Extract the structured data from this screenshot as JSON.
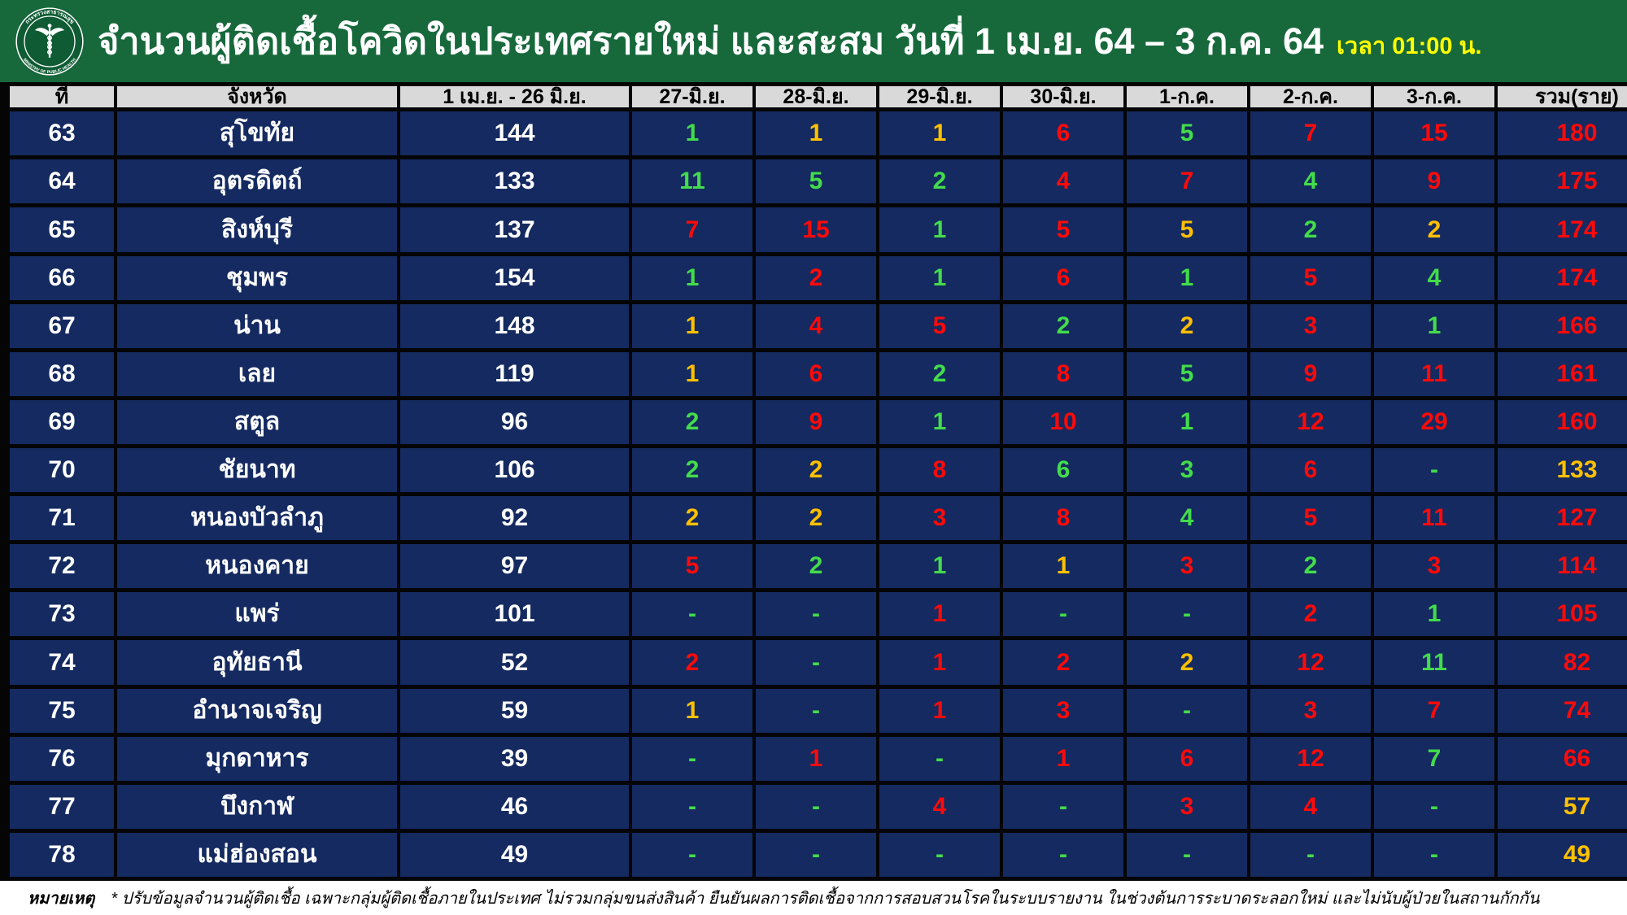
{
  "header": {
    "title": "จำนวนผู้ติดเชื้อโควิดในประเทศรายใหม่ และสะสม วันที่ 1 เม.ย. 64 – 3 ก.ค. 64",
    "time": "เวลา 01:00 น.",
    "logo": {
      "top_text": "กระทรวงสาธารณสุข",
      "bottom_text": "MINISTRY OF PUBLIC HEALTH"
    }
  },
  "colors": {
    "green": "#43dc4b",
    "yellow": "#ffc000",
    "red": "#ff0a0a",
    "white": "#ffffff",
    "cell_navy": "#142a60",
    "header_grey": "#d9d9d9",
    "bar_green": "#17693c",
    "time_yellow": "#ffff00"
  },
  "table": {
    "columns": [
      "ที่",
      "จังหวัด",
      "1 เม.ย. - 26 มิ.ย.",
      "27-มิ.ย.",
      "28-มิ.ย.",
      "29-มิ.ย.",
      "30-มิ.ย.",
      "1-ก.ค.",
      "2-ก.ค.",
      "3-ก.ค.",
      "รวม(ราย)"
    ],
    "rows": [
      {
        "no": "63",
        "province": "สุโขทัย",
        "period": "144",
        "days": [
          {
            "v": "1",
            "c": "green"
          },
          {
            "v": "1",
            "c": "yellow"
          },
          {
            "v": "1",
            "c": "yellow"
          },
          {
            "v": "6",
            "c": "red"
          },
          {
            "v": "5",
            "c": "green"
          },
          {
            "v": "7",
            "c": "red"
          },
          {
            "v": "15",
            "c": "red"
          }
        ],
        "total": {
          "v": "180",
          "c": "red"
        }
      },
      {
        "no": "64",
        "province": "อุตรดิตถ์",
        "period": "133",
        "days": [
          {
            "v": "11",
            "c": "green"
          },
          {
            "v": "5",
            "c": "green"
          },
          {
            "v": "2",
            "c": "green"
          },
          {
            "v": "4",
            "c": "red"
          },
          {
            "v": "7",
            "c": "red"
          },
          {
            "v": "4",
            "c": "green"
          },
          {
            "v": "9",
            "c": "red"
          }
        ],
        "total": {
          "v": "175",
          "c": "red"
        }
      },
      {
        "no": "65",
        "province": "สิงห์บุรี",
        "period": "137",
        "days": [
          {
            "v": "7",
            "c": "red"
          },
          {
            "v": "15",
            "c": "red"
          },
          {
            "v": "1",
            "c": "green"
          },
          {
            "v": "5",
            "c": "red"
          },
          {
            "v": "5",
            "c": "yellow"
          },
          {
            "v": "2",
            "c": "green"
          },
          {
            "v": "2",
            "c": "yellow"
          }
        ],
        "total": {
          "v": "174",
          "c": "red"
        }
      },
      {
        "no": "66",
        "province": "ชุมพร",
        "period": "154",
        "days": [
          {
            "v": "1",
            "c": "green"
          },
          {
            "v": "2",
            "c": "red"
          },
          {
            "v": "1",
            "c": "green"
          },
          {
            "v": "6",
            "c": "red"
          },
          {
            "v": "1",
            "c": "green"
          },
          {
            "v": "5",
            "c": "red"
          },
          {
            "v": "4",
            "c": "green"
          }
        ],
        "total": {
          "v": "174",
          "c": "red"
        }
      },
      {
        "no": "67",
        "province": "น่าน",
        "period": "148",
        "days": [
          {
            "v": "1",
            "c": "yellow"
          },
          {
            "v": "4",
            "c": "red"
          },
          {
            "v": "5",
            "c": "red"
          },
          {
            "v": "2",
            "c": "green"
          },
          {
            "v": "2",
            "c": "yellow"
          },
          {
            "v": "3",
            "c": "red"
          },
          {
            "v": "1",
            "c": "green"
          }
        ],
        "total": {
          "v": "166",
          "c": "red"
        }
      },
      {
        "no": "68",
        "province": "เลย",
        "period": "119",
        "days": [
          {
            "v": "1",
            "c": "yellow"
          },
          {
            "v": "6",
            "c": "red"
          },
          {
            "v": "2",
            "c": "green"
          },
          {
            "v": "8",
            "c": "red"
          },
          {
            "v": "5",
            "c": "green"
          },
          {
            "v": "9",
            "c": "red"
          },
          {
            "v": "11",
            "c": "red"
          }
        ],
        "total": {
          "v": "161",
          "c": "red"
        }
      },
      {
        "no": "69",
        "province": "สตูล",
        "period": "96",
        "days": [
          {
            "v": "2",
            "c": "green"
          },
          {
            "v": "9",
            "c": "red"
          },
          {
            "v": "1",
            "c": "green"
          },
          {
            "v": "10",
            "c": "red"
          },
          {
            "v": "1",
            "c": "green"
          },
          {
            "v": "12",
            "c": "red"
          },
          {
            "v": "29",
            "c": "red"
          }
        ],
        "total": {
          "v": "160",
          "c": "red"
        }
      },
      {
        "no": "70",
        "province": "ชัยนาท",
        "period": "106",
        "days": [
          {
            "v": "2",
            "c": "green"
          },
          {
            "v": "2",
            "c": "yellow"
          },
          {
            "v": "8",
            "c": "red"
          },
          {
            "v": "6",
            "c": "green"
          },
          {
            "v": "3",
            "c": "green"
          },
          {
            "v": "6",
            "c": "red"
          },
          {
            "v": "-",
            "c": "green"
          }
        ],
        "total": {
          "v": "133",
          "c": "yellow"
        }
      },
      {
        "no": "71",
        "province": "หนองบัวลำภู",
        "period": "92",
        "days": [
          {
            "v": "2",
            "c": "yellow"
          },
          {
            "v": "2",
            "c": "yellow"
          },
          {
            "v": "3",
            "c": "red"
          },
          {
            "v": "8",
            "c": "red"
          },
          {
            "v": "4",
            "c": "green"
          },
          {
            "v": "5",
            "c": "red"
          },
          {
            "v": "11",
            "c": "red"
          }
        ],
        "total": {
          "v": "127",
          "c": "red"
        }
      },
      {
        "no": "72",
        "province": "หนองคาย",
        "period": "97",
        "days": [
          {
            "v": "5",
            "c": "red"
          },
          {
            "v": "2",
            "c": "green"
          },
          {
            "v": "1",
            "c": "green"
          },
          {
            "v": "1",
            "c": "yellow"
          },
          {
            "v": "3",
            "c": "red"
          },
          {
            "v": "2",
            "c": "green"
          },
          {
            "v": "3",
            "c": "red"
          }
        ],
        "total": {
          "v": "114",
          "c": "red"
        }
      },
      {
        "no": "73",
        "province": "แพร่",
        "period": "101",
        "days": [
          {
            "v": "-",
            "c": "green"
          },
          {
            "v": "-",
            "c": "green"
          },
          {
            "v": "1",
            "c": "red"
          },
          {
            "v": "-",
            "c": "green"
          },
          {
            "v": "-",
            "c": "green"
          },
          {
            "v": "2",
            "c": "red"
          },
          {
            "v": "1",
            "c": "green"
          }
        ],
        "total": {
          "v": "105",
          "c": "red"
        }
      },
      {
        "no": "74",
        "province": "อุทัยธานี",
        "period": "52",
        "days": [
          {
            "v": "2",
            "c": "red"
          },
          {
            "v": "-",
            "c": "green"
          },
          {
            "v": "1",
            "c": "red"
          },
          {
            "v": "2",
            "c": "red"
          },
          {
            "v": "2",
            "c": "yellow"
          },
          {
            "v": "12",
            "c": "red"
          },
          {
            "v": "11",
            "c": "green"
          }
        ],
        "total": {
          "v": "82",
          "c": "red"
        }
      },
      {
        "no": "75",
        "province": "อำนาจเจริญ",
        "period": "59",
        "days": [
          {
            "v": "1",
            "c": "yellow"
          },
          {
            "v": "-",
            "c": "green"
          },
          {
            "v": "1",
            "c": "red"
          },
          {
            "v": "3",
            "c": "red"
          },
          {
            "v": "-",
            "c": "green"
          },
          {
            "v": "3",
            "c": "red"
          },
          {
            "v": "7",
            "c": "red"
          }
        ],
        "total": {
          "v": "74",
          "c": "red"
        }
      },
      {
        "no": "76",
        "province": "มุกดาหาร",
        "period": "39",
        "days": [
          {
            "v": "-",
            "c": "green"
          },
          {
            "v": "1",
            "c": "red"
          },
          {
            "v": "-",
            "c": "green"
          },
          {
            "v": "1",
            "c": "red"
          },
          {
            "v": "6",
            "c": "red"
          },
          {
            "v": "12",
            "c": "red"
          },
          {
            "v": "7",
            "c": "green"
          }
        ],
        "total": {
          "v": "66",
          "c": "red"
        }
      },
      {
        "no": "77",
        "province": "บึงกาฬ",
        "period": "46",
        "days": [
          {
            "v": "-",
            "c": "green"
          },
          {
            "v": "-",
            "c": "green"
          },
          {
            "v": "4",
            "c": "red"
          },
          {
            "v": "-",
            "c": "green"
          },
          {
            "v": "3",
            "c": "red"
          },
          {
            "v": "4",
            "c": "red"
          },
          {
            "v": "-",
            "c": "green"
          }
        ],
        "total": {
          "v": "57",
          "c": "yellow"
        }
      },
      {
        "no": "78",
        "province": "แม่ฮ่องสอน",
        "period": "49",
        "days": [
          {
            "v": "-",
            "c": "green"
          },
          {
            "v": "-",
            "c": "green"
          },
          {
            "v": "-",
            "c": "green"
          },
          {
            "v": "-",
            "c": "green"
          },
          {
            "v": "-",
            "c": "green"
          },
          {
            "v": "-",
            "c": "green"
          },
          {
            "v": "-",
            "c": "green"
          }
        ],
        "total": {
          "v": "49",
          "c": "yellow"
        }
      }
    ]
  },
  "footer": {
    "label": "หมายเหตุ",
    "note": "* ปรับข้อมูลจำนวนผู้ติดเชื้อ เฉพาะกลุ่มผู้ติดเชื้อภายในประเทศ ไม่รวมกลุ่มขนส่งสินค้า ยืนยันผลการติดเชื้อจากการสอบสวนโรคในระบบรายงาน ในช่วงต้นการระบาดระลอกใหม่ และไม่นับผู้ป่วยในสถานกักกัน"
  },
  "chart_data": {
    "type": "table",
    "title": "จำนวนผู้ติดเชื้อโควิดในประเทศรายใหม่ และสะสม วันที่ 1 เม.ย. 64 – 3 ก.ค. 64 เวลา 01:00 น.",
    "columns": [
      "ที่",
      "จังหวัด",
      "1 เม.ย. - 26 มิ.ย.",
      "27-มิ.ย.",
      "28-มิ.ย.",
      "29-มิ.ย.",
      "30-มิ.ย.",
      "1-ก.ค.",
      "2-ก.ค.",
      "3-ก.ค.",
      "รวม(ราย)"
    ],
    "rows": [
      [
        "63",
        "สุโขทัย",
        144,
        1,
        1,
        1,
        6,
        5,
        7,
        15,
        180
      ],
      [
        "64",
        "อุตรดิตถ์",
        133,
        11,
        5,
        2,
        4,
        7,
        4,
        9,
        175
      ],
      [
        "65",
        "สิงห์บุรี",
        137,
        7,
        15,
        1,
        5,
        5,
        2,
        2,
        174
      ],
      [
        "66",
        "ชุมพร",
        154,
        1,
        2,
        1,
        6,
        1,
        5,
        4,
        174
      ],
      [
        "67",
        "น่าน",
        148,
        1,
        4,
        5,
        2,
        2,
        3,
        1,
        166
      ],
      [
        "68",
        "เลย",
        119,
        1,
        6,
        2,
        8,
        5,
        9,
        11,
        161
      ],
      [
        "69",
        "สตูล",
        96,
        2,
        9,
        1,
        10,
        1,
        12,
        29,
        160
      ],
      [
        "70",
        "ชัยนาท",
        106,
        2,
        2,
        8,
        6,
        3,
        6,
        "-",
        133
      ],
      [
        "71",
        "หนองบัวลำภู",
        92,
        2,
        2,
        3,
        8,
        4,
        5,
        11,
        127
      ],
      [
        "72",
        "หนองคาย",
        97,
        5,
        2,
        1,
        1,
        3,
        2,
        3,
        114
      ],
      [
        "73",
        "แพร่",
        101,
        "-",
        "-",
        1,
        "-",
        "-",
        2,
        1,
        105
      ],
      [
        "74",
        "อุทัยธานี",
        52,
        2,
        "-",
        1,
        2,
        2,
        12,
        11,
        82
      ],
      [
        "75",
        "อำนาจเจริญ",
        59,
        1,
        "-",
        1,
        3,
        "-",
        3,
        7,
        74
      ],
      [
        "76",
        "มุกดาหาร",
        39,
        "-",
        1,
        "-",
        1,
        6,
        12,
        7,
        66
      ],
      [
        "77",
        "บึงกาฬ",
        46,
        "-",
        "-",
        4,
        "-",
        3,
        4,
        "-",
        57
      ],
      [
        "78",
        "แม่ฮ่องสอน",
        49,
        "-",
        "-",
        "-",
        "-",
        "-",
        "-",
        "-",
        49
      ]
    ]
  }
}
